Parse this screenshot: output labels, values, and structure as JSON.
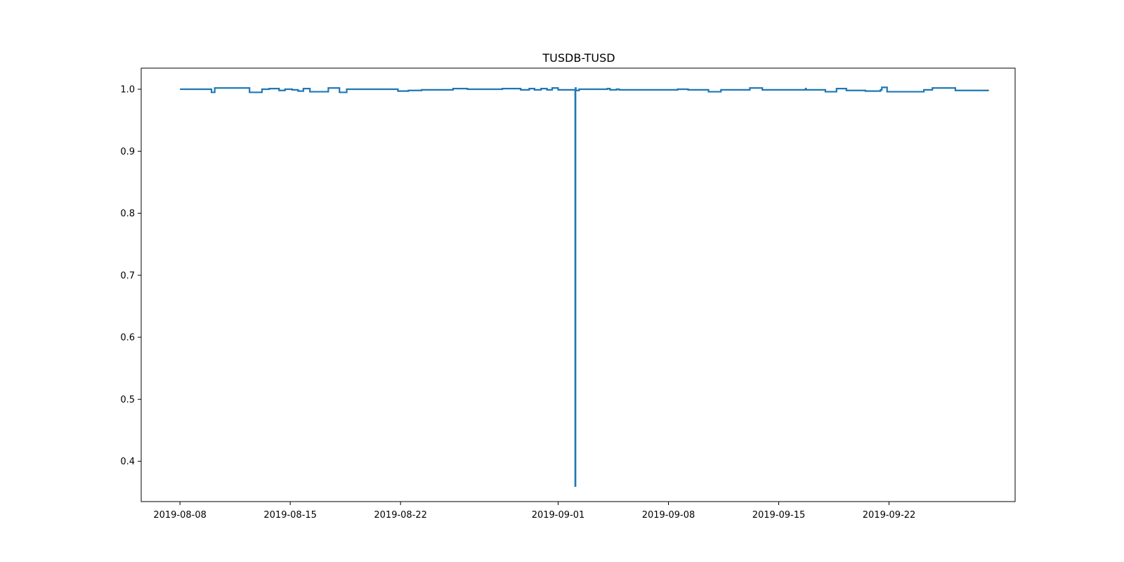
{
  "chart_data": {
    "type": "line",
    "title": "TUSDB-TUSD",
    "xlabel": "",
    "ylabel": "",
    "x_axis_type": "date",
    "xlim": [
      "2019-08-05T13:00",
      "2019-09-30T00:00"
    ],
    "ylim": [
      0.335,
      1.034
    ],
    "x_ticks": [
      "2019-08-08",
      "2019-08-15",
      "2019-08-22",
      "2019-09-01",
      "2019-09-08",
      "2019-09-15",
      "2019-09-22"
    ],
    "y_ticks": [
      "0.4",
      "0.5",
      "0.6",
      "0.7",
      "0.8",
      "0.9",
      "1.0"
    ],
    "grid": false,
    "legend": "none",
    "line_style": "steps",
    "color": "#1f77b4",
    "series": [
      {
        "x": [
          "2019-08-08T00:00",
          "2019-08-09T06:00",
          "2019-08-10T00:00",
          "2019-08-10T02:00",
          "2019-08-10T05:00",
          "2019-08-12T10:00",
          "2019-08-13T05:00",
          "2019-08-13T16:00",
          "2019-08-13T20:00",
          "2019-08-14T07:00",
          "2019-08-14T16:00",
          "2019-08-15T03:00",
          "2019-08-15T12:00",
          "2019-08-15T20:00",
          "2019-08-16T06:00",
          "2019-08-16T11:00",
          "2019-08-16T19:00",
          "2019-08-17T10:00",
          "2019-08-18T03:00",
          "2019-08-18T14:00",
          "2019-08-21T20:00",
          "2019-08-22T12:00",
          "2019-08-23T08:00",
          "2019-08-25T08:00",
          "2019-08-26T06:00",
          "2019-08-28T11:00",
          "2019-08-29T15:00",
          "2019-08-30T04:00",
          "2019-08-30T12:00",
          "2019-08-30T22:00",
          "2019-08-31T07:00",
          "2019-08-31T15:00",
          "2019-09-01T00:00",
          "2019-09-02T02:00",
          "2019-09-02T02:30",
          "2019-09-02T03:00",
          "2019-09-02T08:00",
          "2019-09-04T03:00",
          "2019-09-04T07:00",
          "2019-09-04T17:00",
          "2019-09-04T21:00",
          "2019-09-08T14:00",
          "2019-09-09T06:00",
          "2019-09-10T13:00",
          "2019-09-11T08:00",
          "2019-09-11T12:00",
          "2019-09-13T04:00",
          "2019-09-13T23:00",
          "2019-09-16T17:00",
          "2019-09-16T17:30",
          "2019-09-17T23:00",
          "2019-09-18T16:00",
          "2019-09-19T07:00",
          "2019-09-20T12:00",
          "2019-09-21T11:00",
          "2019-09-21T13:00",
          "2019-09-21T21:00",
          "2019-09-23T12:00",
          "2019-09-24T05:00",
          "2019-09-24T18:00",
          "2019-09-26T05:00",
          "2019-09-28T07:00"
        ],
        "values": [
          1.0,
          1.0,
          0.995,
          0.995,
          1.002,
          0.995,
          1.0,
          1.001,
          1.001,
          0.998,
          1.0,
          0.999,
          0.997,
          1.001,
          0.996,
          0.996,
          0.996,
          1.002,
          0.995,
          1.0,
          0.997,
          0.998,
          0.999,
          1.001,
          1.0,
          1.001,
          0.999,
          1.001,
          0.999,
          1.001,
          0.999,
          1.002,
          0.999,
          0.36,
          1.002,
          0.998,
          1.0,
          1.001,
          0.999,
          1.0,
          0.999,
          1.0,
          0.999,
          0.996,
          0.999,
          0.999,
          1.002,
          0.999,
          1.001,
          0.999,
          0.996,
          1.001,
          0.998,
          0.997,
          0.999,
          1.003,
          0.996,
          0.996,
          0.999,
          1.002,
          0.998,
          0.997
        ]
      }
    ]
  }
}
